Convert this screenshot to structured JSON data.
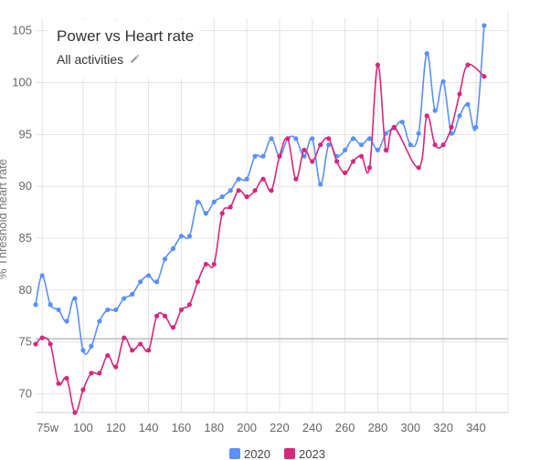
{
  "chart_data": {
    "type": "line",
    "title": "Power vs Heart rate",
    "subtitle": "All activities",
    "ylabel": "% Threshold heart rate",
    "xlabel": "",
    "x_tick_labels": [
      "75w",
      "100",
      "120",
      "140",
      "160",
      "180",
      "200",
      "220",
      "240",
      "260",
      "280",
      "300",
      "320",
      "340"
    ],
    "x_ticks": [
      75,
      100,
      120,
      140,
      160,
      180,
      200,
      220,
      240,
      260,
      280,
      300,
      320,
      340
    ],
    "y_ticks": [
      70,
      75,
      80,
      85,
      90,
      95,
      100,
      105
    ],
    "xlim": [
      71,
      354
    ],
    "ylim": [
      68.2,
      106.2
    ],
    "reference_y": 75.3,
    "grid": true,
    "legend_position": "bottom",
    "series": [
      {
        "name": "2020",
        "color": "#5b8ff9",
        "points": [
          [
            71,
            78.6
          ],
          [
            75,
            81.4
          ],
          [
            80,
            78.6
          ],
          [
            85,
            78.1
          ],
          [
            90,
            77.0
          ],
          [
            95,
            79.2
          ],
          [
            100,
            74.2
          ],
          [
            105,
            74.6
          ],
          [
            110,
            77.0
          ],
          [
            115,
            78.1
          ],
          [
            120,
            78.1
          ],
          [
            125,
            79.2
          ],
          [
            130,
            79.6
          ],
          [
            135,
            80.8
          ],
          [
            140,
            81.4
          ],
          [
            145,
            80.8
          ],
          [
            150,
            83.0
          ],
          [
            155,
            84.0
          ],
          [
            160,
            85.2
          ],
          [
            165,
            85.2
          ],
          [
            170,
            88.5
          ],
          [
            175,
            87.4
          ],
          [
            180,
            88.5
          ],
          [
            185,
            89.0
          ],
          [
            190,
            89.6
          ],
          [
            195,
            90.7
          ],
          [
            200,
            90.7
          ],
          [
            205,
            92.9
          ],
          [
            210,
            92.9
          ],
          [
            215,
            94.6
          ],
          [
            220,
            92.9
          ],
          [
            225,
            94.6
          ],
          [
            230,
            94.6
          ],
          [
            235,
            92.9
          ],
          [
            240,
            94.6
          ],
          [
            245,
            90.2
          ],
          [
            250,
            94.0
          ],
          [
            255,
            92.9
          ],
          [
            260,
            93.5
          ],
          [
            265,
            94.6
          ],
          [
            270,
            94.0
          ],
          [
            275,
            94.6
          ],
          [
            280,
            93.5
          ],
          [
            285,
            95.1
          ],
          [
            290,
            95.6
          ],
          [
            295,
            96.2
          ],
          [
            300,
            94.0
          ],
          [
            305,
            95.1
          ],
          [
            310,
            102.8
          ],
          [
            315,
            97.3
          ],
          [
            320,
            100.1
          ],
          [
            325,
            95.1
          ],
          [
            330,
            96.8
          ],
          [
            335,
            97.9
          ],
          [
            340,
            95.7
          ],
          [
            345,
            105.5
          ]
        ]
      },
      {
        "name": "2023",
        "color": "#d6287c",
        "points": [
          [
            71,
            74.8
          ],
          [
            75,
            75.4
          ],
          [
            80,
            74.8
          ],
          [
            85,
            71.0
          ],
          [
            90,
            71.5
          ],
          [
            95,
            68.2
          ],
          [
            100,
            70.4
          ],
          [
            105,
            72.0
          ],
          [
            110,
            72.0
          ],
          [
            115,
            73.7
          ],
          [
            120,
            72.6
          ],
          [
            125,
            75.4
          ],
          [
            130,
            74.2
          ],
          [
            135,
            74.8
          ],
          [
            140,
            74.2
          ],
          [
            145,
            77.5
          ],
          [
            150,
            77.5
          ],
          [
            155,
            76.4
          ],
          [
            160,
            78.1
          ],
          [
            165,
            78.6
          ],
          [
            170,
            80.8
          ],
          [
            175,
            82.5
          ],
          [
            180,
            82.5
          ],
          [
            185,
            87.4
          ],
          [
            190,
            88.0
          ],
          [
            195,
            89.6
          ],
          [
            200,
            89.0
          ],
          [
            205,
            89.6
          ],
          [
            210,
            90.7
          ],
          [
            215,
            89.6
          ],
          [
            220,
            92.9
          ],
          [
            225,
            94.6
          ],
          [
            230,
            90.7
          ],
          [
            235,
            93.5
          ],
          [
            240,
            92.4
          ],
          [
            245,
            94.0
          ],
          [
            250,
            94.6
          ],
          [
            255,
            92.4
          ],
          [
            260,
            91.3
          ],
          [
            265,
            92.4
          ],
          [
            270,
            92.9
          ],
          [
            275,
            91.8
          ],
          [
            280,
            101.7
          ],
          [
            285,
            93.5
          ],
          [
            290,
            95.7
          ],
          [
            305,
            91.8
          ],
          [
            310,
            96.8
          ],
          [
            315,
            94.0
          ],
          [
            320,
            94.0
          ],
          [
            325,
            95.7
          ],
          [
            330,
            98.9
          ],
          [
            335,
            101.7
          ],
          [
            345,
            100.6
          ]
        ]
      }
    ]
  }
}
